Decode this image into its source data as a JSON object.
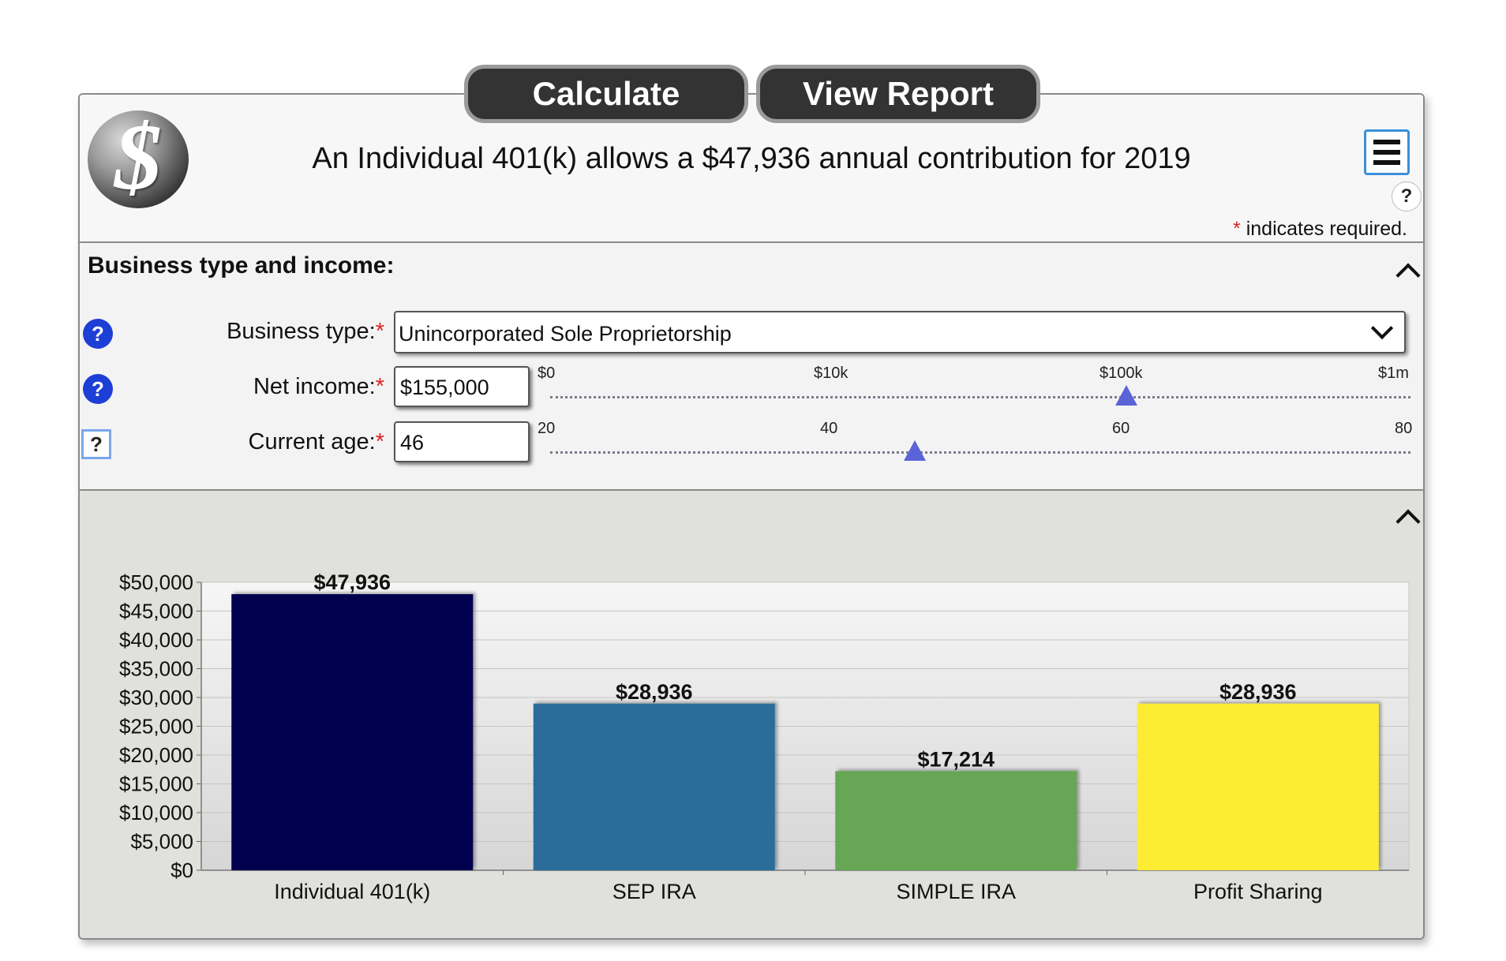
{
  "toolbar": {
    "calculate_label": "Calculate",
    "view_report_label": "View Report"
  },
  "header": {
    "logo_glyph": "$",
    "headline": "An Individual 401(k) allows a $47,936 annual contribution for 2019",
    "menu_icon": "hamburger-menu-icon",
    "help_glyph": "?",
    "required_star": "*",
    "required_note": " indicates required."
  },
  "business": {
    "section_title": "Business type and income:",
    "business_type_label": "Business type:",
    "business_type_value": "Unincorporated Sole Proprietorship",
    "net_income_label": "Net income:",
    "net_income_value": "$155,000",
    "net_income_ticks": [
      "$0",
      "$10k",
      "$100k",
      "$1m"
    ],
    "age_label": "Current age:",
    "age_value": "46",
    "age_ticks": [
      "20",
      "40",
      "60",
      "80"
    ],
    "required_star": "*",
    "help_glyph": "?"
  },
  "colors": {
    "accent_blue": "#1d3fd6",
    "slider_thumb": "#5a64d8",
    "header_button": "#333333"
  },
  "chart_data": {
    "type": "bar",
    "categories": [
      "Individual 401(k)",
      "SEP IRA",
      "SIMPLE IRA",
      "Profit Sharing"
    ],
    "values": [
      47936,
      28936,
      17214,
      28936
    ],
    "value_labels": [
      "$47,936",
      "$28,936",
      "$17,214",
      "$28,936"
    ],
    "colors": [
      "#030650",
      "#2a6d9a",
      "#66a654",
      "#fded31"
    ],
    "y_ticks": [
      "$0",
      "$5,000",
      "$10,000",
      "$15,000",
      "$20,000",
      "$25,000",
      "$30,000",
      "$35,000",
      "$40,000",
      "$45,000",
      "$50,000"
    ],
    "ylim": [
      0,
      50000
    ],
    "title": "",
    "xlabel": "",
    "ylabel": "",
    "grid": true
  }
}
